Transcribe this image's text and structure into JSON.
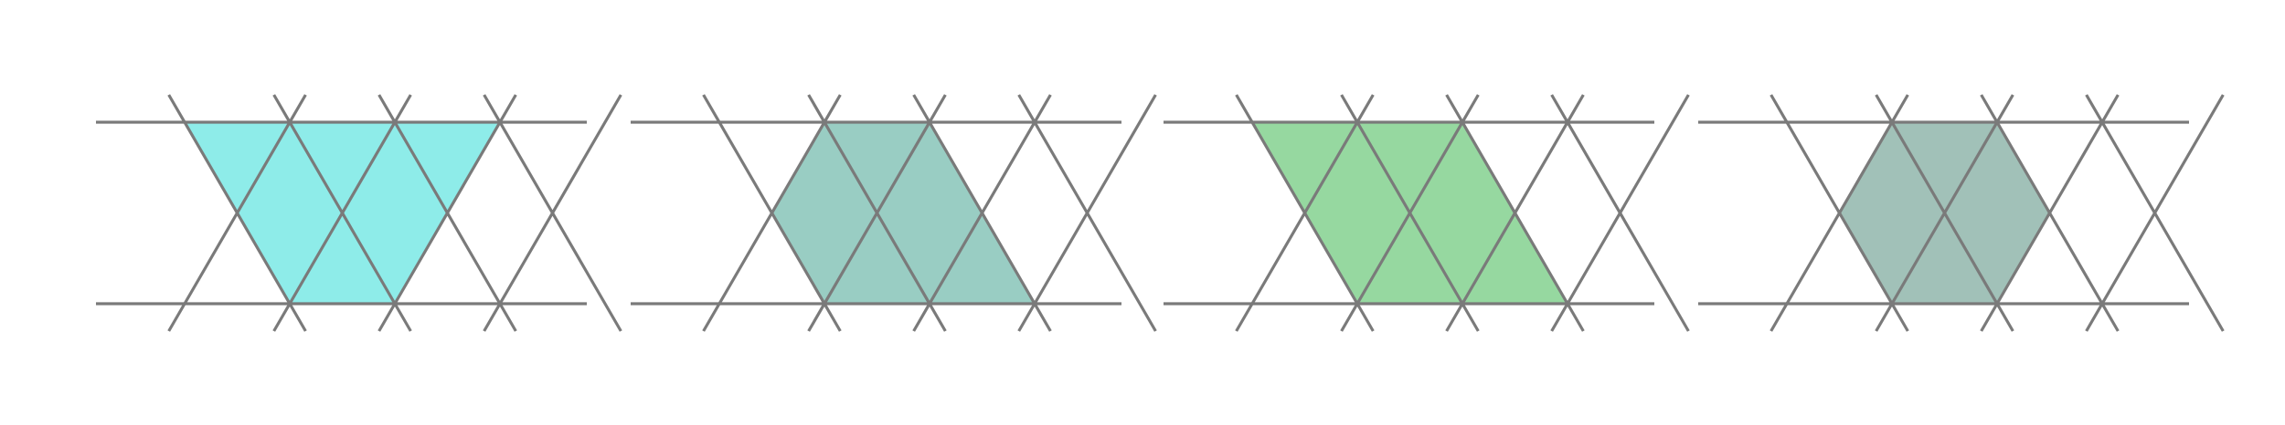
{
  "figure": {
    "panel_count": 4,
    "line_color": "#7a7a7a",
    "background": "#ffffff",
    "panels": [
      {
        "id": "panel-1",
        "shaded_shape": "trapezoid",
        "fill_color": "#8eece9"
      },
      {
        "id": "panel-2",
        "shaded_shape": "parallelogram",
        "fill_color": "#99cdc3"
      },
      {
        "id": "panel-3",
        "shaded_shape": "parallelogram",
        "fill_color": "#96d8a0"
      },
      {
        "id": "panel-4",
        "shaded_shape": "hexagon",
        "fill_color": "#a1c1b8"
      }
    ]
  }
}
